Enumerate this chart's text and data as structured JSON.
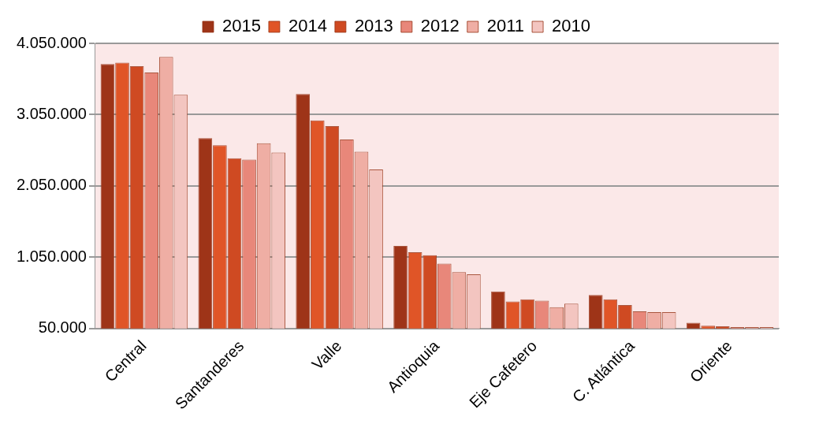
{
  "chart_data": {
    "type": "bar",
    "categories": [
      "Central",
      "Santanderes",
      "Valle",
      "Antioquia",
      "Eje Cafetero",
      "C. Atlántica",
      "Oriente"
    ],
    "series": [
      {
        "name": "2015",
        "color": "#9e3418",
        "values": [
          3760000,
          2720000,
          3340000,
          1210000,
          570000,
          520000,
          130000
        ]
      },
      {
        "name": "2014",
        "color": "#e05527",
        "values": [
          3780000,
          2620000,
          2970000,
          1120000,
          430000,
          460000,
          90000
        ]
      },
      {
        "name": "2013",
        "color": "#cf4a22",
        "values": [
          3730000,
          2440000,
          2890000,
          1080000,
          460000,
          380000,
          80000
        ]
      },
      {
        "name": "2012",
        "color": "#e8877a",
        "values": [
          3640000,
          2420000,
          2700000,
          960000,
          440000,
          290000,
          70000
        ]
      },
      {
        "name": "2011",
        "color": "#efaea4",
        "values": [
          3860000,
          2650000,
          2530000,
          840000,
          350000,
          280000,
          70000
        ]
      },
      {
        "name": "2010",
        "color": "#f3c5c0",
        "values": [
          3330000,
          2520000,
          2280000,
          810000,
          400000,
          280000,
          70000
        ]
      }
    ],
    "ylim": [
      50000,
      4050000
    ],
    "yticks": [
      {
        "value": 50000,
        "label": "50.000"
      },
      {
        "value": 1050000,
        "label": "1.050.000"
      },
      {
        "value": 2050000,
        "label": "2.050.000"
      },
      {
        "value": 3050000,
        "label": "3.050.000"
      },
      {
        "value": 4050000,
        "label": "4.050.000"
      }
    ],
    "grid": "y",
    "legend": "top"
  }
}
